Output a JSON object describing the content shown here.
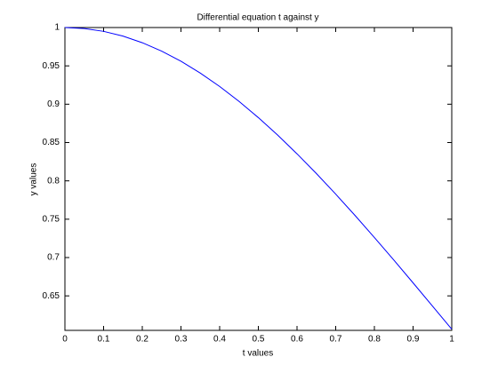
{
  "chart_data": {
    "type": "line",
    "title": "Differential equation t against y",
    "xlabel": "t values",
    "ylabel": "y values",
    "x": [
      0,
      0.05,
      0.1,
      0.15,
      0.2,
      0.25,
      0.3,
      0.35,
      0.4,
      0.45,
      0.5,
      0.55,
      0.6,
      0.65,
      0.7,
      0.75,
      0.8,
      0.85,
      0.9,
      0.95,
      1
    ],
    "series": [
      {
        "color": "#0000ff",
        "values": [
          1,
          0.99875,
          0.99501,
          0.98881,
          0.9802,
          0.96923,
          0.956,
          0.94058,
          0.92312,
          0.9037,
          0.8825,
          0.85966,
          0.83527,
          0.80957,
          0.7827,
          0.75484,
          0.72615,
          0.69682,
          0.66698,
          0.6368,
          0.60653
        ]
      }
    ],
    "xlim": [
      0,
      1
    ],
    "xticks": [
      0,
      0.1,
      0.2,
      0.3,
      0.4,
      0.5,
      0.6,
      0.7,
      0.8,
      0.9,
      1
    ],
    "ylim": [
      0.605,
      1
    ],
    "yticks": [
      0.65,
      0.7,
      0.75,
      0.8,
      0.85,
      0.9,
      0.95,
      1
    ]
  }
}
